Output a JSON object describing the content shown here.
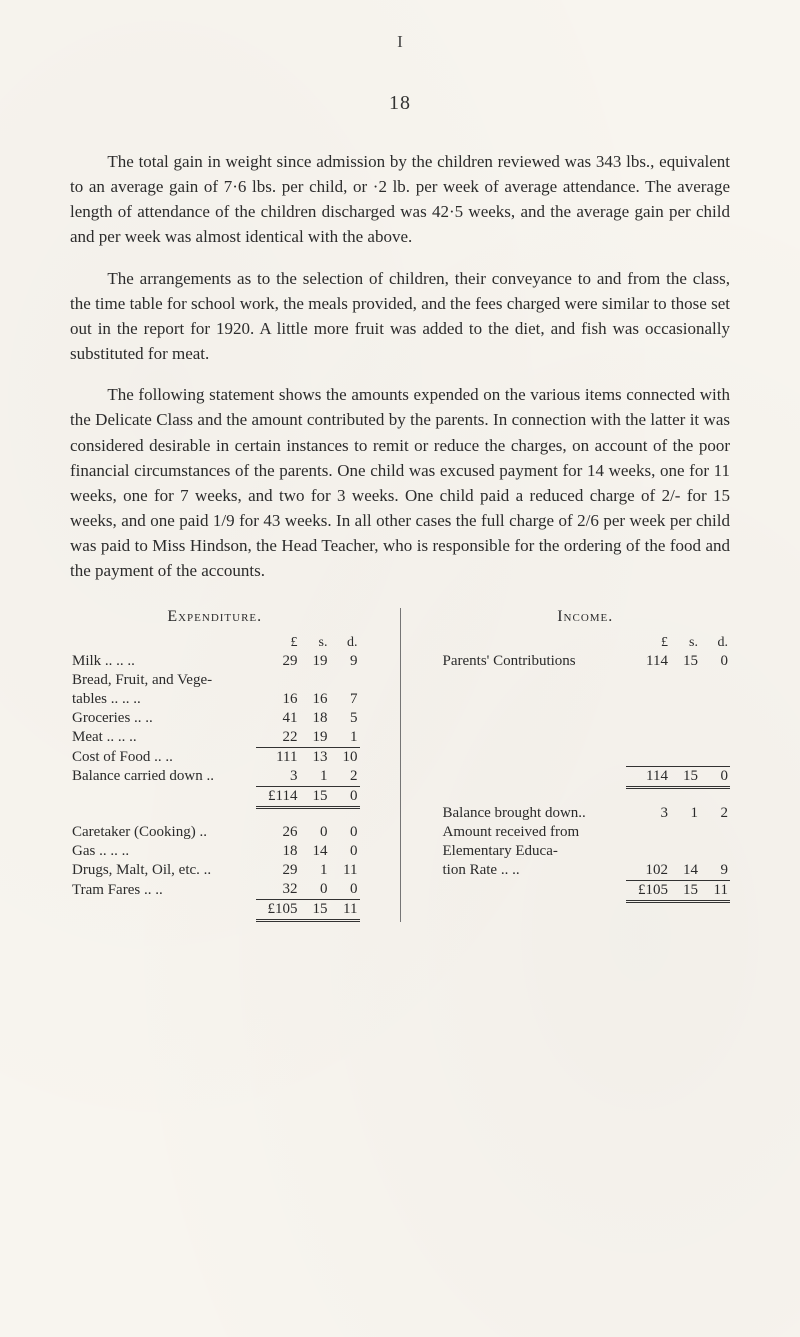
{
  "page": {
    "topmark": "I",
    "number": "18",
    "paragraphs": [
      "The total gain in weight since admission by the children reviewed was 343 lbs., equivalent to an average gain of 7·6 lbs. per child, or ·2 lb. per week of average attendance. The average length of attendance of the children discharged was 42·5 weeks, and the average gain per child and per week was almost identical with the above.",
      "The arrangements as to the selection of children, their conveyance to and from the class, the time table for school work, the meals provided, and the fees charged were similar to those set out in the report for 1920. A little more fruit was added to the diet, and fish was occasionally substituted for meat.",
      "The following statement shows the amounts expended on the various items connected with the Delicate Class and the amount contributed by the parents. In connection with the latter it was considered desirable in certain instances to remit or reduce the charges, on account of the poor financial circumstances of the parents. One child was excused payment for 14 weeks, one for 11 weeks, one for 7 weeks, and two for 3 weeks. One child paid a reduced charge of 2/- for 15 weeks, and one paid 1/9 for 43 weeks. In all other cases the full charge of 2/6 per week per child was paid to Miss Hindson, the Head Teacher, who is responsible for the ordering of the food and the payment of the accounts."
    ]
  },
  "ledger": {
    "currency_heads": [
      "£",
      "s.",
      "d."
    ],
    "expenditure": {
      "title": "Expenditure.",
      "block1": [
        {
          "label": "Milk   ..   ..   ..",
          "L": "29",
          "s": "19",
          "d": "9"
        },
        {
          "label": "Bread, Fruit, and Vege-",
          "L": "",
          "s": "",
          "d": ""
        },
        {
          "label": "  tables ..  ..  ..",
          "L": "16",
          "s": "16",
          "d": "7"
        },
        {
          "label": "Groceries    ..  ..",
          "L": "41",
          "s": "18",
          "d": "5"
        },
        {
          "label": "Meat    ..   ..   ..",
          "L": "22",
          "s": "19",
          "d": "1"
        }
      ],
      "block1_sub": [
        {
          "label": "Cost of Food  ..   ..",
          "L": "111",
          "s": "13",
          "d": "10"
        },
        {
          "label": "Balance carried down ..",
          "L": "3",
          "s": "1",
          "d": "2"
        }
      ],
      "block1_total": {
        "label": "",
        "L": "£114",
        "s": "15",
        "d": "0"
      },
      "block2": [
        {
          "label": "Caretaker (Cooking) ..",
          "L": "26",
          "s": "0",
          "d": "0"
        },
        {
          "label": "Gas    ..   ..   ..",
          "L": "18",
          "s": "14",
          "d": "0"
        },
        {
          "label": "Drugs, Malt, Oil, etc. ..",
          "L": "29",
          "s": "1",
          "d": "11"
        },
        {
          "label": "Tram Fares  ..   ..",
          "L": "32",
          "s": "0",
          "d": "0"
        }
      ],
      "block2_total": {
        "label": "",
        "L": "£105",
        "s": "15",
        "d": "11"
      }
    },
    "income": {
      "title": "Income.",
      "block1": [
        {
          "label": "Parents' Contributions",
          "L": "114",
          "s": "15",
          "d": "0"
        }
      ],
      "block1_total": {
        "label": "",
        "L": "114",
        "s": "15",
        "d": "0"
      },
      "block2": [
        {
          "label": "Balance brought down..",
          "L": "3",
          "s": "1",
          "d": "2"
        },
        {
          "label": "Amount received from",
          "L": "",
          "s": "",
          "d": ""
        },
        {
          "label": "  Elementary Educa-",
          "L": "",
          "s": "",
          "d": ""
        },
        {
          "label": "  tion Rate   ..   ..",
          "L": "102",
          "s": "14",
          "d": "9"
        }
      ],
      "block2_total": {
        "label": "",
        "L": "£105",
        "s": "15",
        "d": "11"
      }
    }
  }
}
